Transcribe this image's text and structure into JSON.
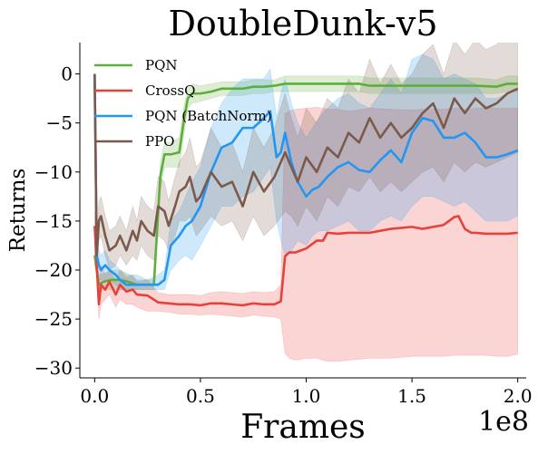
{
  "chart_data": {
    "type": "line",
    "title": "DoubleDunk-v5",
    "xlabel": "Frames",
    "ylabel": "Returns",
    "x_offset_label": "1e8",
    "xlim": [
      -0.07,
      2.04
    ],
    "ylim": [
      -31,
      3.2
    ],
    "xticks": [
      0.0,
      0.5,
      1.0,
      1.5,
      2.0
    ],
    "xtick_labels": [
      "0.0",
      "0.5",
      "1.0",
      "1.5",
      "2.0"
    ],
    "yticks": [
      0,
      -5,
      -10,
      -15,
      -20,
      -25,
      -30
    ],
    "ytick_labels": [
      "0",
      "−5",
      "−10",
      "−15",
      "−20",
      "−25",
      "−30"
    ],
    "grid": false,
    "legend_position": "top-left",
    "series": [
      {
        "name": "PQN",
        "color": "#5fae3b",
        "x": [
          0.0,
          0.02,
          0.04,
          0.08,
          0.12,
          0.16,
          0.2,
          0.25,
          0.28,
          0.31,
          0.33,
          0.36,
          0.4,
          0.42,
          0.44,
          0.46,
          0.5,
          0.55,
          0.6,
          0.65,
          0.7,
          0.75,
          0.8,
          0.85,
          0.9,
          0.95,
          1.0,
          1.1,
          1.2,
          1.25,
          1.3,
          1.4,
          1.5,
          1.6,
          1.7,
          1.8,
          1.9,
          1.95,
          2.0
        ],
        "y": [
          -18.5,
          -21.5,
          -21.2,
          -21.0,
          -21.0,
          -21.2,
          -21.5,
          -21.5,
          -21.5,
          -10.5,
          -8.2,
          -8.2,
          -8.0,
          -5.0,
          -2.5,
          -2.0,
          -2.0,
          -1.8,
          -1.5,
          -1.5,
          -1.5,
          -1.3,
          -1.3,
          -1.2,
          -1.0,
          -1.0,
          -1.0,
          -1.0,
          -1.0,
          -1.0,
          -1.2,
          -1.2,
          -1.2,
          -1.2,
          -1.2,
          -1.2,
          -1.3,
          -1.0,
          -1.0
        ],
        "lower": [
          -19.5,
          -22.5,
          -22.0,
          -22.0,
          -22.0,
          -22.0,
          -22.0,
          -22.0,
          -22.0,
          -12.0,
          -9.5,
          -9.5,
          -9.5,
          -6.5,
          -3.5,
          -3.0,
          -2.8,
          -2.5,
          -2.2,
          -2.2,
          -2.2,
          -2.0,
          -2.0,
          -1.8,
          -1.8,
          -1.8,
          -1.8,
          -1.8,
          -1.8,
          -1.8,
          -2.0,
          -2.0,
          -2.0,
          -2.0,
          -2.0,
          -2.0,
          -2.0,
          -1.8,
          -1.8
        ],
        "upper": [
          -17.5,
          -20.5,
          -20.4,
          -20.0,
          -20.0,
          -20.4,
          -21.0,
          -21.0,
          -21.0,
          -9.0,
          -7.0,
          -7.0,
          -6.5,
          -3.5,
          -1.5,
          -1.0,
          -1.2,
          -1.0,
          -0.8,
          -0.8,
          -0.8,
          -0.6,
          -0.6,
          -0.6,
          -0.2,
          -0.2,
          -0.2,
          -0.2,
          -0.2,
          -0.2,
          -0.4,
          -0.4,
          -0.4,
          -0.4,
          -0.4,
          -0.4,
          -0.6,
          -0.2,
          -0.2
        ]
      },
      {
        "name": "CrossQ",
        "color": "#e8413a",
        "x": [
          0.0,
          0.02,
          0.03,
          0.05,
          0.07,
          0.1,
          0.12,
          0.15,
          0.18,
          0.2,
          0.25,
          0.3,
          0.35,
          0.4,
          0.45,
          0.5,
          0.55,
          0.6,
          0.65,
          0.7,
          0.75,
          0.8,
          0.85,
          0.88,
          0.9,
          0.92,
          0.95,
          1.0,
          1.05,
          1.08,
          1.1,
          1.15,
          1.2,
          1.3,
          1.4,
          1.5,
          1.55,
          1.6,
          1.65,
          1.7,
          1.72,
          1.75,
          1.78,
          1.8,
          1.85,
          1.9,
          1.95,
          2.0
        ],
        "y": [
          -15.5,
          -23.5,
          -21.5,
          -22.0,
          -21.2,
          -22.5,
          -21.5,
          -22.2,
          -22.0,
          -22.5,
          -22.6,
          -23.3,
          -23.4,
          -23.5,
          -23.5,
          -23.6,
          -23.4,
          -23.4,
          -23.5,
          -23.6,
          -23.4,
          -23.5,
          -23.5,
          -23.2,
          -18.6,
          -18.2,
          -18.2,
          -17.8,
          -17.0,
          -17.0,
          -16.2,
          -16.3,
          -16.2,
          -16.2,
          -15.8,
          -15.6,
          -15.8,
          -15.6,
          -15.4,
          -14.6,
          -14.5,
          -15.8,
          -16.2,
          -16.2,
          -16.3,
          -16.3,
          -16.3,
          -16.2
        ],
        "lower": [
          -17.0,
          -25.0,
          -23.5,
          -23.0,
          -22.5,
          -23.8,
          -23.0,
          -23.5,
          -23.5,
          -23.8,
          -24.2,
          -24.2,
          -24.3,
          -24.5,
          -24.5,
          -24.6,
          -24.5,
          -24.6,
          -24.7,
          -24.8,
          -24.6,
          -24.7,
          -24.8,
          -25.0,
          -28.5,
          -29.0,
          -29.2,
          -29.0,
          -29.0,
          -29.2,
          -29.3,
          -29.3,
          -29.2,
          -29.0,
          -29.0,
          -28.8,
          -28.8,
          -28.8,
          -28.8,
          -28.7,
          -28.7,
          -28.7,
          -28.7,
          -28.7,
          -28.7,
          -28.8,
          -28.8,
          -28.6
        ],
        "upper": [
          -14.0,
          -22.0,
          -19.5,
          -20.5,
          -20.0,
          -21.2,
          -20.0,
          -20.8,
          -20.5,
          -21.2,
          -21.0,
          -22.3,
          -22.5,
          -22.5,
          -22.5,
          -22.6,
          -22.3,
          -22.2,
          -22.3,
          -22.4,
          -22.2,
          -22.3,
          -22.2,
          -21.5,
          -4.0,
          -3.8,
          -3.6,
          -3.5,
          -3.4,
          -3.5,
          -3.6,
          -3.6,
          -3.8,
          -3.5,
          -3.6,
          -3.7,
          -3.6,
          -3.6,
          -3.6,
          -3.5,
          -3.5,
          -3.6,
          -3.6,
          -3.5,
          -3.5,
          -3.5,
          -3.5,
          -3.5
        ]
      },
      {
        "name": "PQN (BatchNorm)",
        "color": "#2196f3",
        "x": [
          0.0,
          0.01,
          0.02,
          0.03,
          0.05,
          0.07,
          0.1,
          0.12,
          0.15,
          0.18,
          0.2,
          0.25,
          0.3,
          0.33,
          0.36,
          0.4,
          0.43,
          0.46,
          0.5,
          0.55,
          0.6,
          0.65,
          0.7,
          0.75,
          0.8,
          0.83,
          0.86,
          0.88,
          0.9,
          0.93,
          0.96,
          1.0,
          1.03,
          1.06,
          1.1,
          1.15,
          1.2,
          1.25,
          1.3,
          1.35,
          1.4,
          1.45,
          1.5,
          1.55,
          1.6,
          1.65,
          1.7,
          1.75,
          1.8,
          1.85,
          1.9,
          1.95,
          2.0
        ],
        "y": [
          0.0,
          -18.5,
          -19.5,
          -20.0,
          -19.5,
          -20.0,
          -20.5,
          -21.0,
          -21.5,
          -21.5,
          -21.5,
          -21.5,
          -21.5,
          -21.0,
          -17.5,
          -16.5,
          -15.5,
          -15.0,
          -13.5,
          -10.0,
          -7.5,
          -7.0,
          -5.5,
          -5.5,
          -4.5,
          -3.8,
          -8.5,
          -8.0,
          -6.0,
          -9.0,
          -11.0,
          -12.5,
          -11.8,
          -11.5,
          -10.5,
          -9.5,
          -9.0,
          -9.8,
          -10.0,
          -8.8,
          -7.8,
          -9.0,
          -6.0,
          -4.5,
          -4.8,
          -6.5,
          -6.5,
          -6.0,
          -7.0,
          -8.5,
          -8.5,
          -8.2,
          -7.8
        ],
        "lower": [
          0.0,
          -20.0,
          -21.0,
          -21.0,
          -21.0,
          -21.0,
          -21.5,
          -22.0,
          -22.0,
          -22.0,
          -22.0,
          -22.0,
          -22.0,
          -22.0,
          -20.0,
          -19.0,
          -18.5,
          -19.0,
          -17.5,
          -15.5,
          -13.5,
          -13.5,
          -12.5,
          -12.0,
          -10.5,
          -9.5,
          -15.0,
          -17.0,
          -18.5,
          -18.0,
          -17.0,
          -17.5,
          -16.5,
          -16.0,
          -16.0,
          -15.5,
          -15.0,
          -16.0,
          -16.0,
          -15.0,
          -14.5,
          -15.0,
          -13.5,
          -12.5,
          -12.5,
          -13.0,
          -13.5,
          -13.0,
          -14.0,
          -15.0,
          -15.0,
          -15.0,
          -14.5
        ],
        "upper": [
          0.0,
          -17.0,
          -18.0,
          -18.5,
          -18.0,
          -19.0,
          -19.5,
          -20.0,
          -20.5,
          -20.5,
          -20.5,
          -21.0,
          -20.5,
          -20.0,
          -15.0,
          -14.0,
          -12.5,
          -11.0,
          -9.5,
          -5.5,
          -3.0,
          -1.5,
          -0.5,
          -0.5,
          -0.5,
          0.5,
          -4.5,
          -2.0,
          -0.5,
          -3.0,
          -5.0,
          -6.5,
          -5.5,
          -4.5,
          -3.5,
          -2.5,
          -2.0,
          -3.0,
          -3.5,
          -2.0,
          -0.5,
          -2.0,
          1.5,
          2.0,
          1.5,
          -0.5,
          0.0,
          -0.5,
          -1.0,
          -2.5,
          -2.5,
          -2.0,
          -1.5
        ]
      },
      {
        "name": "PPO",
        "color": "#7b5a4b",
        "x": [
          0.0,
          0.01,
          0.02,
          0.03,
          0.04,
          0.05,
          0.07,
          0.1,
          0.12,
          0.15,
          0.18,
          0.2,
          0.22,
          0.25,
          0.28,
          0.3,
          0.33,
          0.35,
          0.38,
          0.4,
          0.43,
          0.45,
          0.48,
          0.5,
          0.55,
          0.6,
          0.65,
          0.7,
          0.75,
          0.8,
          0.85,
          0.9,
          0.93,
          0.96,
          1.0,
          1.05,
          1.1,
          1.15,
          1.2,
          1.25,
          1.3,
          1.35,
          1.4,
          1.45,
          1.5,
          1.55,
          1.6,
          1.65,
          1.7,
          1.75,
          1.8,
          1.85,
          1.9,
          1.95,
          2.0
        ],
        "y": [
          0.0,
          -18.5,
          -15.0,
          -14.5,
          -15.5,
          -16.5,
          -18.0,
          -17.5,
          -16.5,
          -18.0,
          -16.0,
          -17.0,
          -15.0,
          -16.0,
          -16.5,
          -13.5,
          -14.0,
          -15.5,
          -13.5,
          -12.0,
          -11.5,
          -10.5,
          -13.0,
          -12.5,
          -10.0,
          -11.5,
          -11.0,
          -13.5,
          -10.0,
          -12.0,
          -10.5,
          -8.0,
          -9.5,
          -11.0,
          -8.5,
          -10.0,
          -7.5,
          -8.5,
          -6.0,
          -7.0,
          -4.5,
          -6.5,
          -5.0,
          -6.5,
          -5.5,
          -4.0,
          -3.0,
          -5.5,
          -2.5,
          -4.0,
          -2.5,
          -3.5,
          -3.0,
          -2.0,
          -1.5
        ],
        "lower": [
          0.0,
          -20.0,
          -17.0,
          -16.5,
          -17.5,
          -18.5,
          -20.0,
          -19.5,
          -18.5,
          -19.5,
          -18.5,
          -19.0,
          -17.5,
          -18.5,
          -19.0,
          -16.5,
          -17.0,
          -18.0,
          -16.5,
          -15.0,
          -15.0,
          -14.5,
          -16.5,
          -16.0,
          -14.5,
          -15.5,
          -15.0,
          -17.0,
          -14.5,
          -16.5,
          -15.5,
          -14.0,
          -14.5,
          -15.5,
          -13.5,
          -15.0,
          -12.5,
          -13.5,
          -11.5,
          -12.0,
          -10.5,
          -12.0,
          -11.0,
          -12.0,
          -11.0,
          -10.0,
          -9.5,
          -11.0,
          -9.0,
          -10.0,
          -9.0,
          -9.5,
          -9.0,
          -8.5,
          -8.0
        ],
        "upper": [
          0.0,
          -17.0,
          -13.0,
          -12.5,
          -13.5,
          -14.5,
          -16.0,
          -15.5,
          -14.5,
          -16.0,
          -13.5,
          -15.0,
          -12.5,
          -13.5,
          -14.0,
          -10.5,
          -11.0,
          -13.0,
          -10.5,
          -9.0,
          -8.0,
          -6.5,
          -9.5,
          -9.0,
          -5.5,
          -7.5,
          -7.0,
          -10.0,
          -5.5,
          -7.5,
          -5.5,
          -2.0,
          -4.5,
          -6.5,
          -3.5,
          -5.0,
          -2.5,
          -3.5,
          -0.5,
          -2.0,
          1.5,
          -1.0,
          1.0,
          -1.0,
          0.0,
          2.0,
          3.0,
          0.0,
          3.5,
          2.0,
          3.5,
          2.5,
          3.0,
          4.0,
          4.5
        ]
      }
    ]
  }
}
